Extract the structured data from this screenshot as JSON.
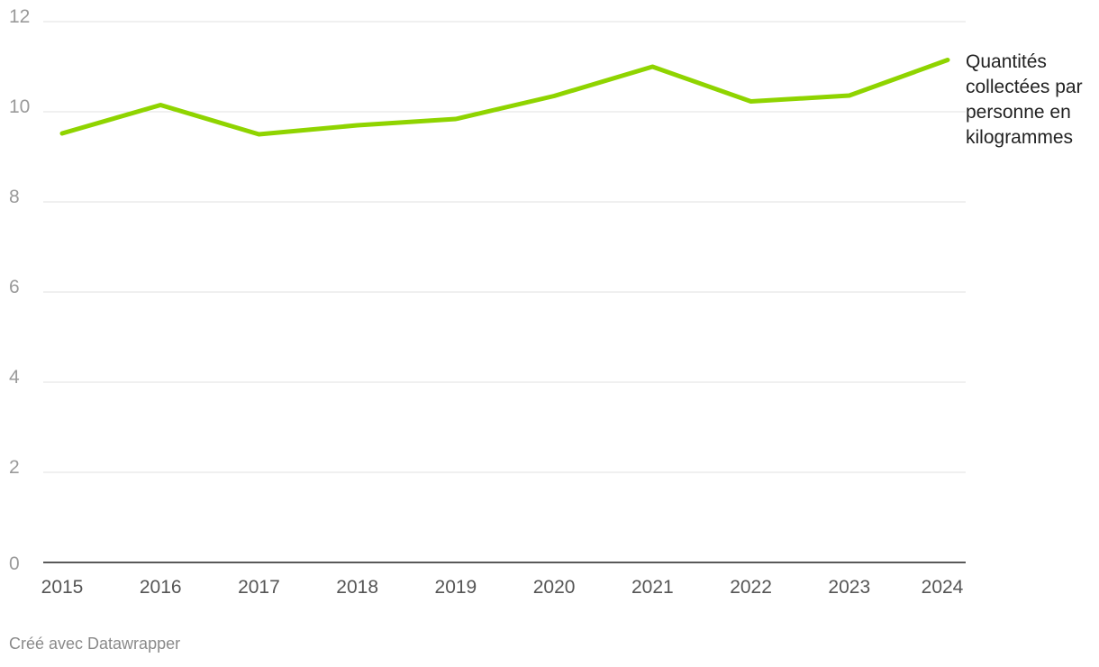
{
  "chart_data": {
    "type": "line",
    "x": [
      "2015",
      "2016",
      "2017",
      "2018",
      "2019",
      "2020",
      "2021",
      "2022",
      "2023",
      "2024"
    ],
    "series": [
      {
        "name": "Quantités collectées par personne en kilogrammes",
        "values": [
          9.52,
          10.15,
          9.5,
          9.7,
          9.84,
          10.35,
          11.0,
          10.23,
          10.36,
          11.15
        ],
        "color": "#8fd400"
      }
    ],
    "yticks": [
      0,
      2,
      4,
      6,
      8,
      10,
      12
    ],
    "ylim": [
      0,
      12
    ],
    "grid": true,
    "legend": "right-end"
  },
  "footer": {
    "credit": "Créé avec Datawrapper"
  }
}
